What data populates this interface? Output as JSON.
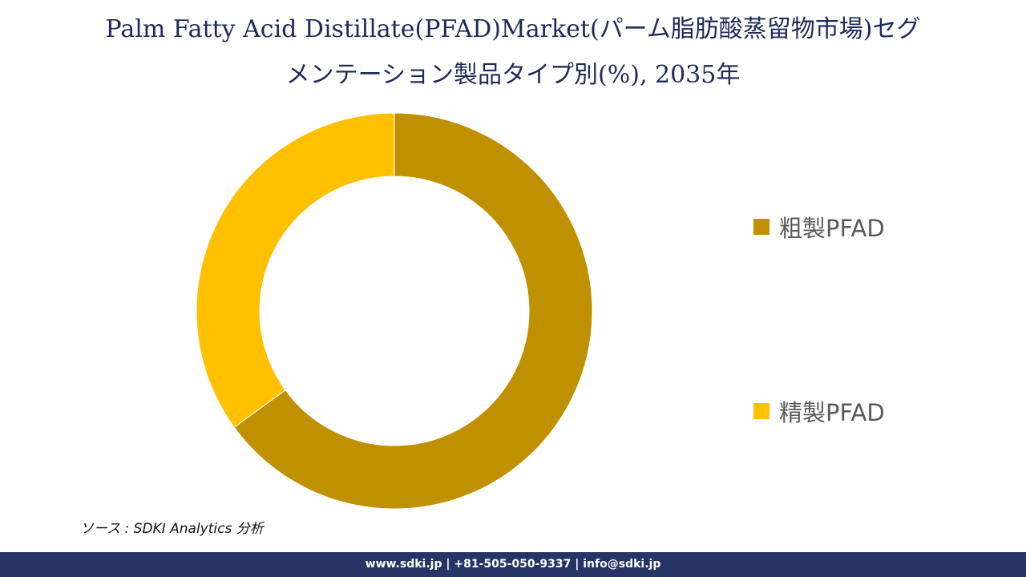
{
  "title": {
    "line1": "Palm Fatty Acid Distillate(PFAD)Market(パーム脂肪酸蒸留物市場)セグ",
    "line2": "メンテーション製品タイプ別(%), 2035年"
  },
  "chart_data": {
    "type": "pie",
    "subtype": "donut",
    "title": "Palm Fatty Acid Distillate(PFAD)Market(パーム脂肪酸蒸留物市場)セグメンテーション製品タイプ別(%), 2035年",
    "categories": [
      "粗製PFAD",
      "精製PFAD"
    ],
    "values": [
      65,
      35
    ],
    "colors": [
      "#bf9000",
      "#ffc000"
    ],
    "legend_position": "right",
    "data_labels": false
  },
  "legend": {
    "items": [
      {
        "label": "粗製PFAD",
        "color": "#bf9000"
      },
      {
        "label": "精製PFAD",
        "color": "#ffc000"
      }
    ]
  },
  "source": "ソース : SDKI Analytics 分析",
  "footer": "www.sdki.jp | +81-505-050-9337 | info@sdki.jp",
  "colors": {
    "title": "#1f2a5c",
    "footer_bg": "#273466",
    "legend_text": "#595959"
  }
}
